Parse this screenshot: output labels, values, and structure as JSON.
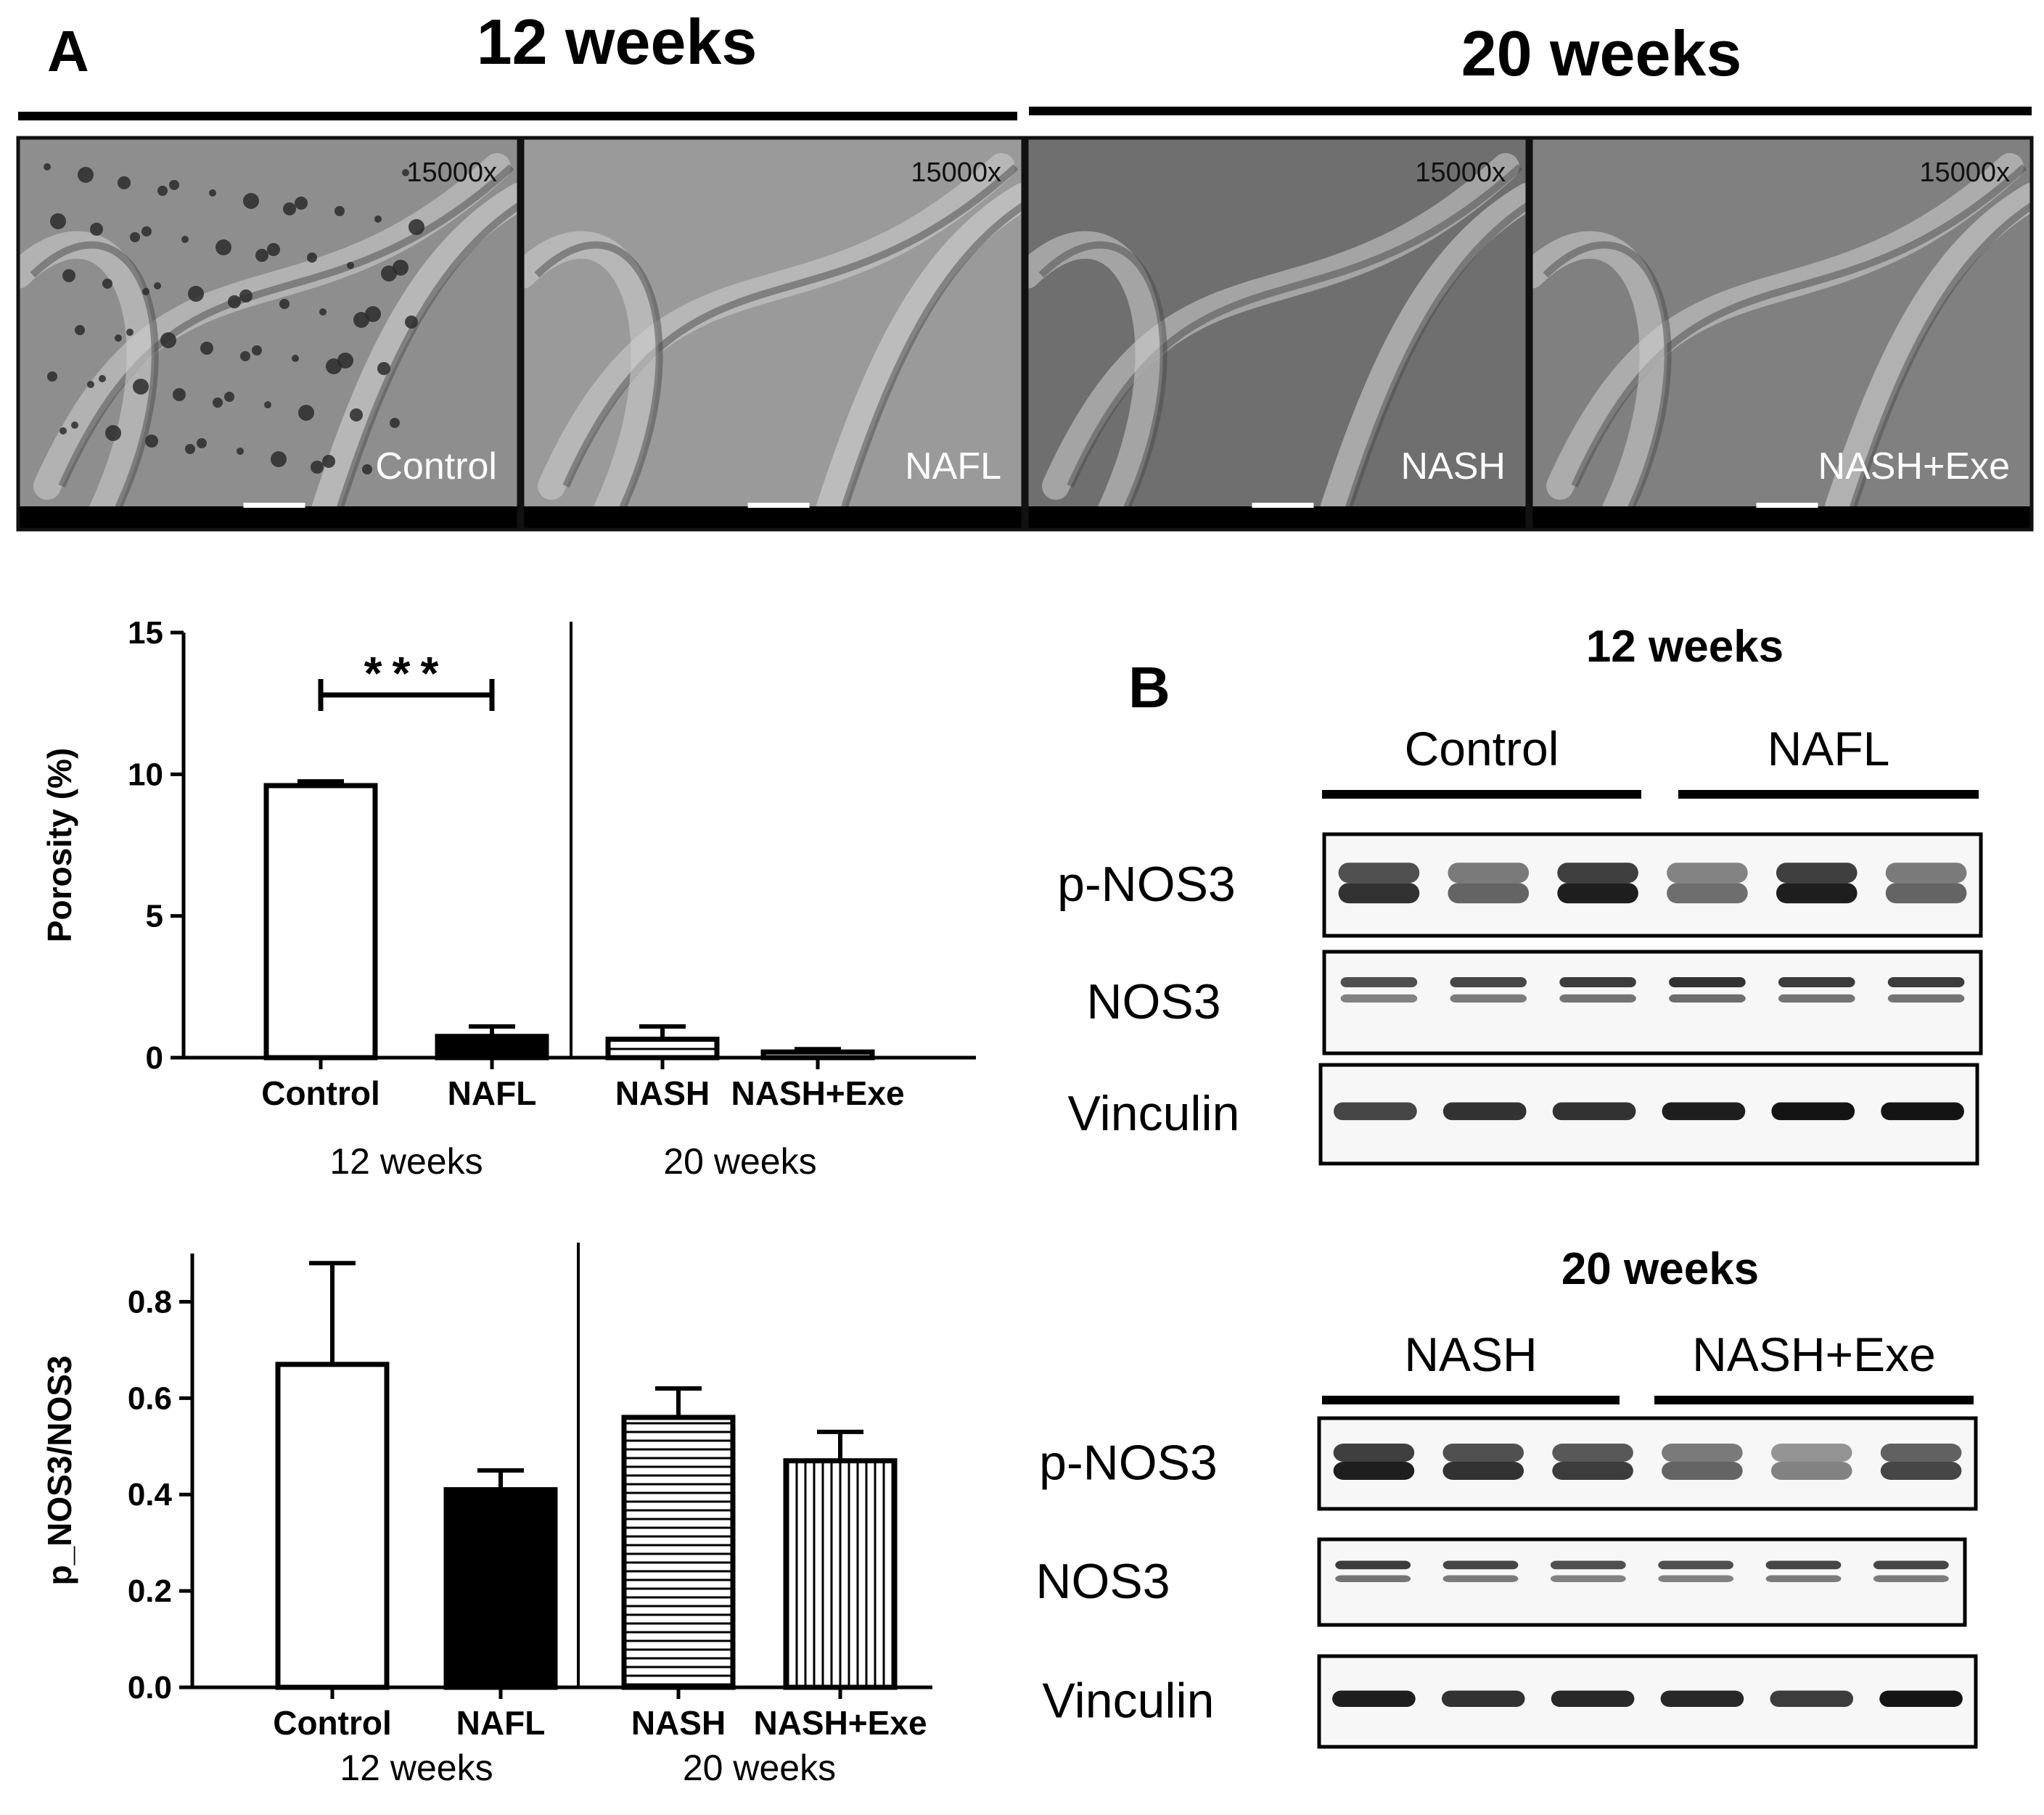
{
  "panel_a_label": "A",
  "panel_b_label": "B",
  "headers": {
    "left": "12 weeks",
    "right": "20 weeks"
  },
  "micrographs": [
    {
      "group": "Control",
      "magnification": "15000x",
      "tone": "#8e8e8e"
    },
    {
      "group": "NAFL",
      "magnification": "15000x",
      "tone": "#9a9a9a"
    },
    {
      "group": "NASH",
      "magnification": "15000x",
      "tone": "#6f6f6f"
    },
    {
      "group": "NASH+Exe",
      "magnification": "15000x",
      "tone": "#808080"
    }
  ],
  "chart_data": [
    {
      "type": "bar",
      "categories": [
        "Control",
        "NAFL",
        "NASH",
        "NASH+Exe"
      ],
      "values": [
        9.6,
        0.75,
        0.65,
        0.2
      ],
      "errors": [
        0.15,
        0.35,
        0.45,
        0.1
      ],
      "bar_styles": [
        "open",
        "solid",
        "hstripe",
        "open"
      ],
      "ylabel": "Porosity (%)",
      "ylim": [
        0,
        15
      ],
      "yticks": [
        0,
        5,
        10,
        15
      ],
      "group_labels": [
        "12 weeks",
        "20 weeks"
      ],
      "significance": {
        "from": "Control",
        "to": "NAFL",
        "label": "***"
      }
    },
    {
      "type": "bar",
      "categories": [
        "Control",
        "NAFL",
        "NASH",
        "NASH+Exe"
      ],
      "values": [
        0.67,
        0.41,
        0.56,
        0.47
      ],
      "errors": [
        0.21,
        0.04,
        0.06,
        0.06
      ],
      "bar_styles": [
        "open",
        "solid",
        "hstripe",
        "vstripe"
      ],
      "ylabel": "p_NOS3/NOS3",
      "ylim": [
        0,
        0.9
      ],
      "yticks": [
        "0.0",
        "0.2",
        "0.4",
        "0.6",
        "0.8"
      ],
      "group_labels": [
        "12 weeks",
        "20 weeks"
      ]
    }
  ],
  "blots": [
    {
      "title": "12 weeks",
      "groups": [
        "Control",
        "NAFL"
      ],
      "rows": [
        {
          "label": "p-NOS3",
          "intensities": [
            0.85,
            0.6,
            0.95,
            0.55,
            0.95,
            0.6
          ]
        },
        {
          "label": "NOS3",
          "intensities": [
            0.7,
            0.75,
            0.8,
            0.85,
            0.8,
            0.8
          ]
        },
        {
          "label": "Vinculin",
          "intensities": [
            0.75,
            0.85,
            0.85,
            0.95,
            1.0,
            1.0
          ]
        }
      ]
    },
    {
      "title": "20 weeks",
      "groups": [
        "NASH",
        "NASH+Exe"
      ],
      "rows": [
        {
          "label": "p-NOS3",
          "intensities": [
            0.95,
            0.85,
            0.8,
            0.6,
            0.45,
            0.75
          ]
        },
        {
          "label": "NOS3",
          "intensities": [
            0.8,
            0.75,
            0.7,
            0.7,
            0.75,
            0.75
          ]
        },
        {
          "label": "Vinculin",
          "intensities": [
            0.95,
            0.85,
            0.9,
            0.9,
            0.8,
            1.0
          ]
        }
      ]
    }
  ]
}
